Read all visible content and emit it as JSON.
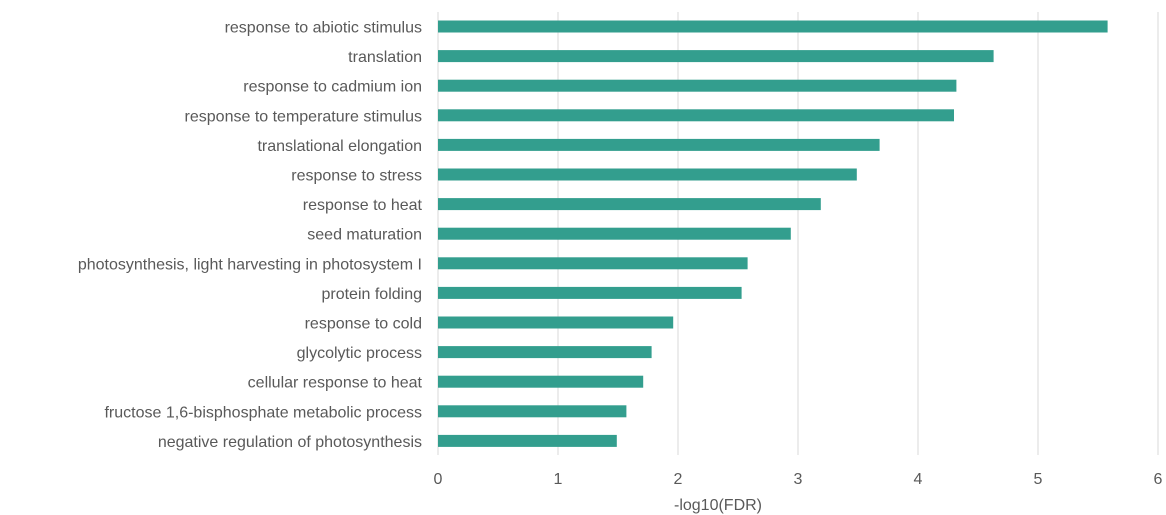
{
  "chart_data": {
    "type": "bar",
    "orientation": "horizontal",
    "categories": [
      "response to abiotic stimulus",
      "translation",
      "response to cadmium ion",
      "response to temperature stimulus",
      "translational elongation",
      "response to stress",
      "response to heat",
      "seed maturation",
      "photosynthesis, light harvesting in photosystem I",
      "protein folding",
      "response to cold",
      "glycolytic process",
      "cellular response to heat",
      "fructose 1,6-bisphosphate metabolic process",
      "negative regulation of photosynthesis"
    ],
    "values": [
      5.58,
      4.63,
      4.32,
      4.3,
      3.68,
      3.49,
      3.19,
      2.94,
      2.58,
      2.53,
      1.96,
      1.78,
      1.71,
      1.57,
      1.49
    ],
    "xlabel": "-log10(FDR)",
    "ylabel": "",
    "xlim": [
      0,
      6
    ],
    "xticks": [
      "0",
      "1",
      "2",
      "3",
      "4",
      "5",
      "6"
    ],
    "grid": "vertical",
    "bar_color": "#339e8e",
    "grid_color": "#d9d9d9"
  }
}
